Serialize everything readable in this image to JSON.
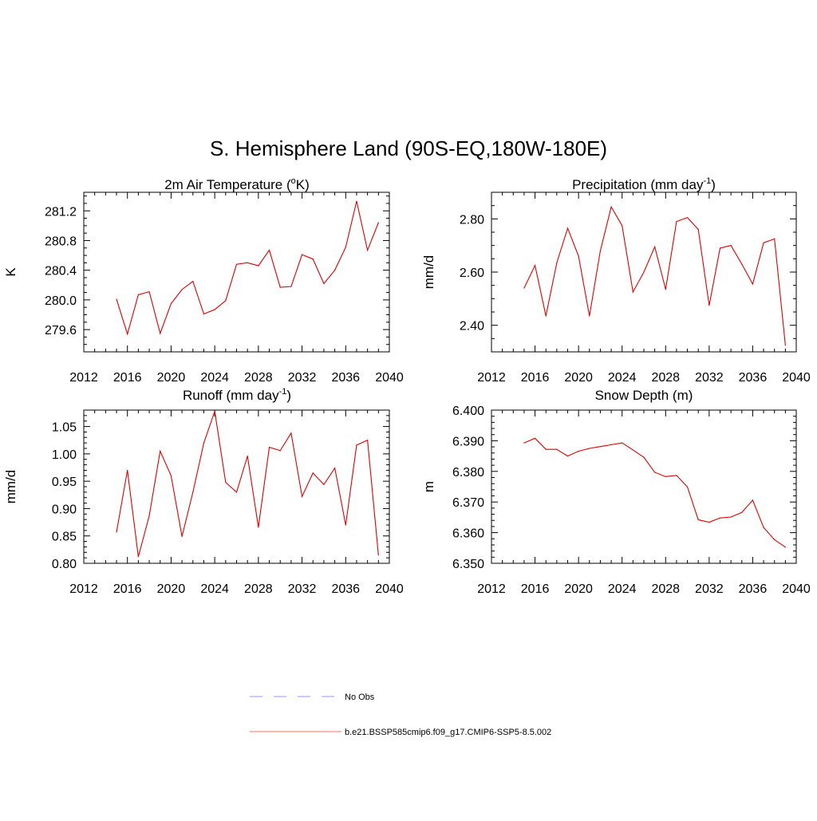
{
  "figure_title": "S. Hemisphere Land (90S-EQ,180W-180E)",
  "legend": [
    {
      "label": "No Obs",
      "color": "#aaaaff",
      "style": "dashed"
    },
    {
      "label": "b.e21.BSSP585cmip6.f09_g17.CMIP6-SSP5-8.5.002",
      "color": "#ff8a8a",
      "style": "solid"
    }
  ],
  "series_color": "#e00000",
  "chart_data": [
    {
      "type": "line",
      "title": "2m Air Temperature (",
      "title_sup_prefix": "o",
      "title_after": "K)",
      "ylabel": "K",
      "xlabel": "",
      "xlim": [
        2012,
        2040
      ],
      "x_ticks": [
        2012,
        2016,
        2020,
        2024,
        2028,
        2032,
        2036,
        2040
      ],
      "x_tick_labels": [
        "2012",
        "2016",
        "2020",
        "2024",
        "2028",
        "2032",
        "2036",
        "2040"
      ],
      "ylim": [
        279.3,
        281.45
      ],
      "y_ticks": [
        279.6,
        280.0,
        280.4,
        280.8,
        281.2
      ],
      "y_tick_labels": [
        "279.6",
        "280.0",
        "280.4",
        "280.8",
        "281.2"
      ],
      "y_minor_step": 0.1,
      "x": [
        2015,
        2016,
        2017,
        2018,
        2019,
        2020,
        2021,
        2022,
        2023,
        2024,
        2025,
        2026,
        2027,
        2028,
        2029,
        2030,
        2031,
        2032,
        2033,
        2034,
        2035,
        2036,
        2037,
        2038,
        2039
      ],
      "y": [
        280.01,
        279.54,
        280.07,
        280.11,
        279.55,
        279.95,
        280.14,
        280.25,
        279.81,
        279.87,
        279.99,
        280.48,
        280.5,
        280.46,
        280.67,
        280.17,
        280.18,
        280.61,
        280.55,
        280.22,
        280.4,
        280.71,
        281.33,
        280.67,
        281.04
      ]
    },
    {
      "type": "line",
      "title": "Precipitation (mm day",
      "title_sup": "-1",
      "title_after": ")",
      "ylabel": "mm/d",
      "xlabel": "",
      "xlim": [
        2012,
        2040
      ],
      "x_ticks": [
        2012,
        2016,
        2020,
        2024,
        2028,
        2032,
        2036,
        2040
      ],
      "x_tick_labels": [
        "2012",
        "2016",
        "2020",
        "2024",
        "2028",
        "2032",
        "2036",
        "2040"
      ],
      "ylim": [
        2.3,
        2.9
      ],
      "y_ticks": [
        2.4,
        2.6,
        2.8
      ],
      "y_tick_labels": [
        "2.40",
        "2.60",
        "2.80"
      ],
      "y_minor_step": 0.05,
      "x": [
        2015,
        2016,
        2017,
        2018,
        2019,
        2020,
        2021,
        2022,
        2023,
        2024,
        2025,
        2026,
        2027,
        2028,
        2029,
        2030,
        2031,
        2032,
        2033,
        2034,
        2035,
        2036,
        2037,
        2038,
        2039
      ],
      "y": [
        2.54,
        2.625,
        2.435,
        2.635,
        2.765,
        2.66,
        2.435,
        2.68,
        2.845,
        2.775,
        2.525,
        2.6,
        2.695,
        2.535,
        2.79,
        2.805,
        2.76,
        2.475,
        2.69,
        2.7,
        2.63,
        2.555,
        2.71,
        2.725,
        2.325
      ]
    },
    {
      "type": "line",
      "title": "Runoff (mm day",
      "title_sup": "-1",
      "title_after": ")",
      "ylabel": "mm/d",
      "xlabel": "",
      "xlim": [
        2012,
        2040
      ],
      "x_ticks": [
        2012,
        2016,
        2020,
        2024,
        2028,
        2032,
        2036,
        2040
      ],
      "x_tick_labels": [
        "2012",
        "2016",
        "2020",
        "2024",
        "2028",
        "2032",
        "2036",
        "2040"
      ],
      "ylim": [
        0.8,
        1.08
      ],
      "y_ticks": [
        0.8,
        0.85,
        0.9,
        0.95,
        1.0,
        1.05
      ],
      "y_tick_labels": [
        "0.80",
        "0.85",
        "0.90",
        "0.95",
        "1.00",
        "1.05"
      ],
      "y_minor_step": 0.01,
      "x": [
        2015,
        2016,
        2017,
        2018,
        2019,
        2020,
        2021,
        2022,
        2023,
        2024,
        2025,
        2026,
        2027,
        2028,
        2029,
        2030,
        2031,
        2032,
        2033,
        2034,
        2035,
        2036,
        2037,
        2038,
        2039
      ],
      "y": [
        0.857,
        0.97,
        0.812,
        0.887,
        1.005,
        0.96,
        0.849,
        0.93,
        1.02,
        1.078,
        0.948,
        0.93,
        0.996,
        0.866,
        1.012,
        1.006,
        1.038,
        0.922,
        0.965,
        0.944,
        0.974,
        0.87,
        1.016,
        1.025,
        0.815
      ]
    },
    {
      "type": "line",
      "title": "Snow Depth (m)",
      "ylabel": "m",
      "xlabel": "",
      "xlim": [
        2012,
        2040
      ],
      "x_ticks": [
        2012,
        2016,
        2020,
        2024,
        2028,
        2032,
        2036,
        2040
      ],
      "x_tick_labels": [
        "2012",
        "2016",
        "2020",
        "2024",
        "2028",
        "2032",
        "2036",
        "2040"
      ],
      "ylim": [
        6.35,
        6.4
      ],
      "y_ticks": [
        6.35,
        6.36,
        6.37,
        6.38,
        6.39,
        6.4
      ],
      "y_tick_labels": [
        "6.350",
        "6.360",
        "6.370",
        "6.380",
        "6.390",
        "6.400"
      ],
      "y_minor_step": 0.002,
      "x": [
        2015,
        2016,
        2017,
        2018,
        2019,
        2020,
        2021,
        2022,
        2023,
        2024,
        2025,
        2026,
        2027,
        2028,
        2029,
        2030,
        2031,
        2032,
        2033,
        2034,
        2035,
        2036,
        2037,
        2038,
        2039
      ],
      "y": [
        6.3893,
        6.3908,
        6.3872,
        6.3872,
        6.385,
        6.3866,
        6.3875,
        6.3881,
        6.3887,
        6.3893,
        6.387,
        6.3846,
        6.3797,
        6.3783,
        6.3787,
        6.3749,
        6.3642,
        6.3634,
        6.3648,
        6.3651,
        6.3666,
        6.3706,
        6.3617,
        6.3577,
        6.3553
      ]
    }
  ]
}
